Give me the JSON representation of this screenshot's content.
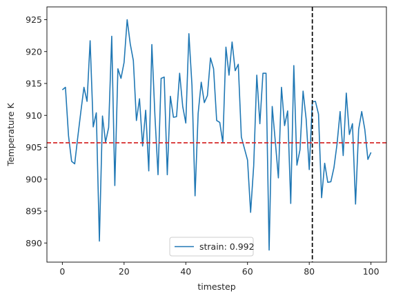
{
  "chart_data": {
    "type": "line",
    "title": "",
    "xlabel": "timestep",
    "ylabel": "Temperature K",
    "xlim": [
      -5,
      105
    ],
    "ylim": [
      887,
      927
    ],
    "xticks": [
      0,
      20,
      40,
      60,
      80,
      100
    ],
    "yticks": [
      890,
      895,
      900,
      905,
      910,
      915,
      920,
      925
    ],
    "grid": false,
    "legend_position": "lower center",
    "series": [
      {
        "name": "strain: 0.992",
        "color": "#1f77b4",
        "x": [
          0,
          1,
          2,
          3,
          4,
          5,
          6,
          7,
          8,
          9,
          10,
          11,
          12,
          13,
          14,
          15,
          16,
          17,
          18,
          19,
          20,
          21,
          22,
          23,
          24,
          25,
          26,
          27,
          28,
          29,
          30,
          31,
          32,
          33,
          34,
          35,
          36,
          37,
          38,
          39,
          40,
          41,
          42,
          43,
          44,
          45,
          46,
          47,
          48,
          49,
          50,
          51,
          52,
          53,
          54,
          55,
          56,
          57,
          58,
          59,
          60,
          61,
          62,
          63,
          64,
          65,
          66,
          67,
          68,
          69,
          70,
          71,
          72,
          73,
          74,
          75,
          76,
          77,
          78,
          79,
          80,
          81,
          82,
          83,
          84,
          85,
          86,
          87,
          88,
          89,
          90,
          91,
          92,
          93,
          94,
          95,
          96,
          97,
          98,
          99,
          100
        ],
        "y": [
          914.0,
          914.4,
          906.8,
          902.8,
          902.4,
          906.6,
          910.6,
          914.4,
          912.2,
          921.7,
          908.2,
          910.4,
          890.3,
          909.9,
          905.8,
          908.1,
          922.4,
          899.0,
          917.3,
          915.8,
          918.3,
          925.0,
          921.2,
          918.6,
          909.2,
          912.6,
          905.2,
          910.8,
          901.3,
          921.1,
          909.9,
          900.7,
          915.8,
          916.0,
          900.7,
          913.0,
          909.7,
          909.8,
          916.6,
          911.4,
          908.8,
          922.8,
          914.7,
          897.4,
          910.3,
          915.2,
          912.0,
          913.1,
          919.0,
          917.3,
          909.2,
          908.9,
          905.7,
          920.7,
          916.3,
          921.5,
          917.0,
          918.0,
          906.6,
          904.8,
          903.0,
          894.8,
          902.1,
          916.3,
          908.7,
          916.6,
          916.6,
          888.9,
          911.4,
          905.9,
          900.2,
          914.4,
          908.4,
          910.7,
          896.2,
          917.8,
          902.2,
          904.6,
          913.8,
          909.4,
          901.5,
          912.1,
          912.2,
          910.2,
          897.1,
          902.5,
          899.5,
          899.6,
          901.8,
          905.5,
          910.6,
          903.7,
          913.5,
          907.0,
          908.7,
          896.1,
          907.8,
          910.6,
          907.8,
          903.1,
          904.2
        ]
      }
    ],
    "reference_lines": [
      {
        "orientation": "horizontal",
        "value": 905.7,
        "color": "#d62728",
        "style": "dashed"
      },
      {
        "orientation": "vertical",
        "value": 81,
        "color": "#000000",
        "style": "dashed"
      }
    ]
  }
}
